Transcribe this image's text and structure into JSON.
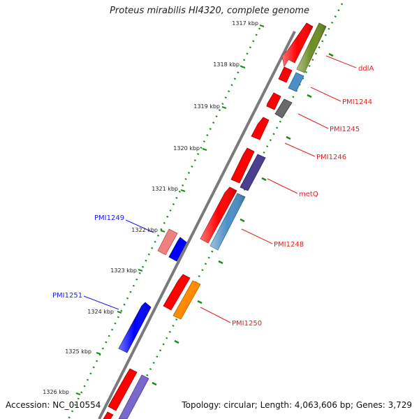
{
  "title": "Proteus mirabilis HI4320, complete genome",
  "footer": {
    "accession_label": "Accession: NC_010554",
    "topology_label": "Topology: circular; Length: 4,063,606 bp; Genes: 3,729"
  },
  "colors": {
    "backbone": "#7a7a7a",
    "dots": "#1a8a1a",
    "label_line_red": "#e02020",
    "label_line_blue": "#1a1aff"
  },
  "kbp_ticks": [
    "1317 kbp",
    "1318 kbp",
    "1319 kbp",
    "1320 kbp",
    "1321 kbp",
    "1322 kbp",
    "1323 kbp",
    "1324 kbp",
    "1325 kbp",
    "1326 kbp"
  ],
  "gene_labels": [
    {
      "text": "ddlA",
      "color": "#e02020"
    },
    {
      "text": "PMI1244",
      "color": "#e02020"
    },
    {
      "text": "PMI1245",
      "color": "#e02020"
    },
    {
      "text": "PMI1246",
      "color": "#e02020"
    },
    {
      "text": "metQ",
      "color": "#e02020"
    },
    {
      "text": "PMI1248",
      "color": "#e02020"
    },
    {
      "text": "PMI1250",
      "color": "#e02020"
    },
    {
      "text": "PMI1249",
      "color": "#1a1aff"
    },
    {
      "text": "PMI1251",
      "color": "#1a1aff"
    }
  ]
}
